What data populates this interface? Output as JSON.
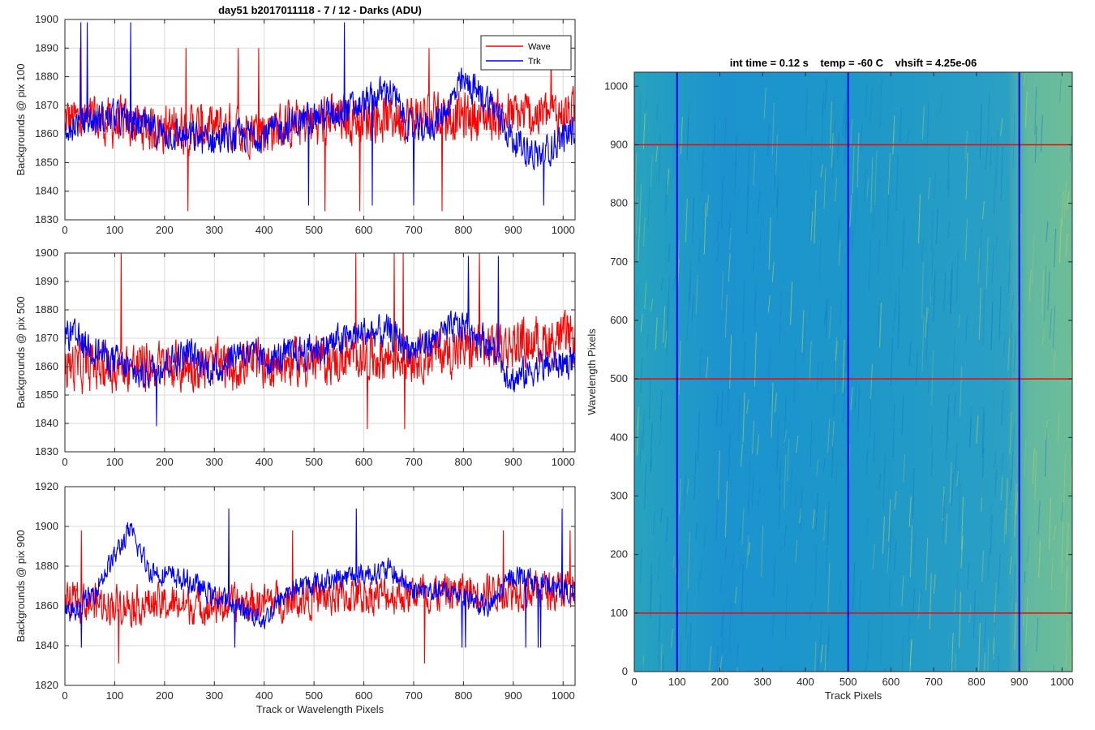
{
  "colors": {
    "wave": "#ff0000",
    "trk": "#0000ff",
    "grid": "#d9d9d9",
    "axes": "#262626",
    "heatmap_low": "#1a8fd0",
    "heatmap_high": "#c7d855"
  },
  "legend": {
    "wave_label": "Wave",
    "trk_label": "Trk",
    "placement": "top-right"
  },
  "xlabel_left": "Track or Wavelength Pixels",
  "chart_data": [
    {
      "type": "line",
      "title": "day51 b2017011118 - 7 / 12 - Darks (ADU)",
      "xlabel": "",
      "ylabel": "Backgrounds @ pix 100",
      "xlim": [
        0,
        1024
      ],
      "ylim": [
        1830,
        1900
      ],
      "xticks": [
        0,
        100,
        200,
        300,
        400,
        500,
        600,
        700,
        800,
        900,
        1000
      ],
      "yticks": [
        1830,
        1840,
        1850,
        1860,
        1870,
        1880,
        1890,
        1900
      ],
      "grid": true,
      "series": [
        {
          "name": "Wave",
          "color": "#ff0000",
          "baseline": [
            [
              0,
              1865
            ],
            [
              200,
              1862
            ],
            [
              400,
              1862
            ],
            [
              600,
              1866
            ],
            [
              800,
              1866
            ],
            [
              1024,
              1867
            ]
          ],
          "noise": 9,
          "min": 1833,
          "max": 1890
        },
        {
          "name": "Trk",
          "color": "#0000ff",
          "baseline": [
            [
              0,
              1863
            ],
            [
              100,
              1866
            ],
            [
              200,
              1860
            ],
            [
              300,
              1858
            ],
            [
              400,
              1860
            ],
            [
              500,
              1866
            ],
            [
              600,
              1870
            ],
            [
              650,
              1876
            ],
            [
              700,
              1860
            ],
            [
              750,
              1865
            ],
            [
              800,
              1878
            ],
            [
              850,
              1872
            ],
            [
              900,
              1858
            ],
            [
              950,
              1852
            ],
            [
              1024,
              1862
            ]
          ],
          "noise": 6,
          "min": 1835,
          "max": 1899
        }
      ]
    },
    {
      "type": "line",
      "title": "",
      "xlabel": "",
      "ylabel": "Backgrounds @ pix 500",
      "xlim": [
        0,
        1024
      ],
      "ylim": [
        1830,
        1900
      ],
      "xticks": [
        0,
        100,
        200,
        300,
        400,
        500,
        600,
        700,
        800,
        900,
        1000
      ],
      "yticks": [
        1830,
        1840,
        1850,
        1860,
        1870,
        1880,
        1890,
        1900
      ],
      "grid": true,
      "series": [
        {
          "name": "Wave",
          "color": "#ff0000",
          "baseline": [
            [
              0,
              1860
            ],
            [
              300,
              1860
            ],
            [
              500,
              1862
            ],
            [
              700,
              1864
            ],
            [
              850,
              1867
            ],
            [
              1024,
              1870
            ]
          ],
          "noise": 9,
          "min": 1838,
          "max": 1900
        },
        {
          "name": "Trk",
          "color": "#0000ff",
          "baseline": [
            [
              0,
              1872
            ],
            [
              100,
              1862
            ],
            [
              150,
              1857
            ],
            [
              250,
              1865
            ],
            [
              300,
              1858
            ],
            [
              350,
              1866
            ],
            [
              400,
              1862
            ],
            [
              500,
              1866
            ],
            [
              600,
              1872
            ],
            [
              650,
              1872
            ],
            [
              700,
              1866
            ],
            [
              800,
              1875
            ],
            [
              850,
              1868
            ],
            [
              900,
              1855
            ],
            [
              950,
              1860
            ],
            [
              1024,
              1862
            ]
          ],
          "noise": 6,
          "min": 1839,
          "max": 1899
        }
      ]
    },
    {
      "type": "line",
      "title": "",
      "xlabel": "Track or Wavelength Pixels",
      "ylabel": "Backgrounds @ pix 900",
      "xlim": [
        0,
        1024
      ],
      "ylim": [
        1820,
        1920
      ],
      "xticks": [
        0,
        100,
        200,
        300,
        400,
        500,
        600,
        700,
        800,
        900,
        1000
      ],
      "yticks": [
        1820,
        1840,
        1860,
        1880,
        1900,
        1920
      ],
      "grid": true,
      "series": [
        {
          "name": "Wave",
          "color": "#ff0000",
          "baseline": [
            [
              0,
              1862
            ],
            [
              300,
              1860
            ],
            [
              500,
              1864
            ],
            [
              700,
              1866
            ],
            [
              900,
              1868
            ],
            [
              1024,
              1868
            ]
          ],
          "noise": 10,
          "min": 1831,
          "max": 1898
        },
        {
          "name": "Trk",
          "color": "#0000ff",
          "baseline": [
            [
              0,
              1855
            ],
            [
              50,
              1864
            ],
            [
              100,
              1885
            ],
            [
              130,
              1898
            ],
            [
              170,
              1878
            ],
            [
              250,
              1872
            ],
            [
              300,
              1865
            ],
            [
              400,
              1853
            ],
            [
              450,
              1868
            ],
            [
              550,
              1874
            ],
            [
              650,
              1878
            ],
            [
              700,
              1868
            ],
            [
              800,
              1866
            ],
            [
              850,
              1858
            ],
            [
              900,
              1876
            ],
            [
              1024,
              1866
            ]
          ],
          "noise": 6,
          "min": 1839,
          "max": 1909
        }
      ]
    },
    {
      "type": "heatmap",
      "title": "int time = 0.12 s    temp = -60 C    vhsift = 4.25e-06",
      "xlabel": "Track Pixels",
      "ylabel": "Wavelength Pixels",
      "xlim": [
        0,
        1024
      ],
      "ylim": [
        0,
        1024
      ],
      "xticks": [
        0,
        100,
        200,
        300,
        400,
        500,
        600,
        700,
        800,
        900,
        1000
      ],
      "yticks": [
        0,
        100,
        200,
        300,
        400,
        500,
        600,
        700,
        800,
        900,
        1000
      ],
      "grid": false,
      "hlines": {
        "values": [
          100,
          500,
          900
        ],
        "color": "#ff0000"
      },
      "vlines": {
        "values": [
          100,
          500,
          900
        ],
        "color": "#0000ff"
      }
    }
  ]
}
